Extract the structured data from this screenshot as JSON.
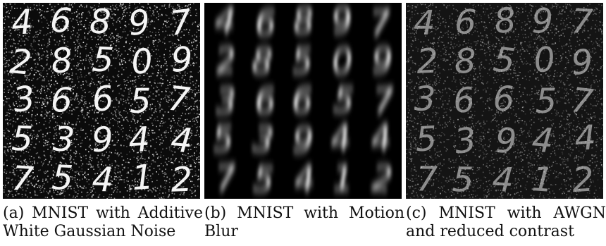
{
  "figure": {
    "panels": [
      {
        "digits": [
          [
            "4",
            "6",
            "8",
            "9",
            "7"
          ],
          [
            "2",
            "8",
            "5",
            "0",
            "9"
          ],
          [
            "3",
            "6",
            "6",
            "5",
            "7"
          ],
          [
            "5",
            "3",
            "9",
            "4",
            "4"
          ],
          [
            "7",
            "5",
            "4",
            "1",
            "2"
          ]
        ],
        "caption": "(a) MNIST with Additive White Gaussian Noise"
      },
      {
        "digits": [
          [
            "4",
            "6",
            "8",
            "9",
            "7"
          ],
          [
            "2",
            "8",
            "5",
            "0",
            "9"
          ],
          [
            "3",
            "6",
            "6",
            "5",
            "7"
          ],
          [
            "5",
            "3",
            "9",
            "4",
            "4"
          ],
          [
            "7",
            "5",
            "4",
            "1",
            "2"
          ]
        ],
        "caption": "(b) MNIST with Motion Blur"
      },
      {
        "digits": [
          [
            "4",
            "6",
            "8",
            "9",
            "7"
          ],
          [
            "2",
            "8",
            "5",
            "0",
            "9"
          ],
          [
            "3",
            "6",
            "6",
            "5",
            "7"
          ],
          [
            "5",
            "3",
            "9",
            "4",
            "4"
          ],
          [
            "7",
            "5",
            "4",
            "1",
            "2"
          ]
        ],
        "caption": "(c) MNIST with AWGN and reduced contrast"
      }
    ]
  }
}
